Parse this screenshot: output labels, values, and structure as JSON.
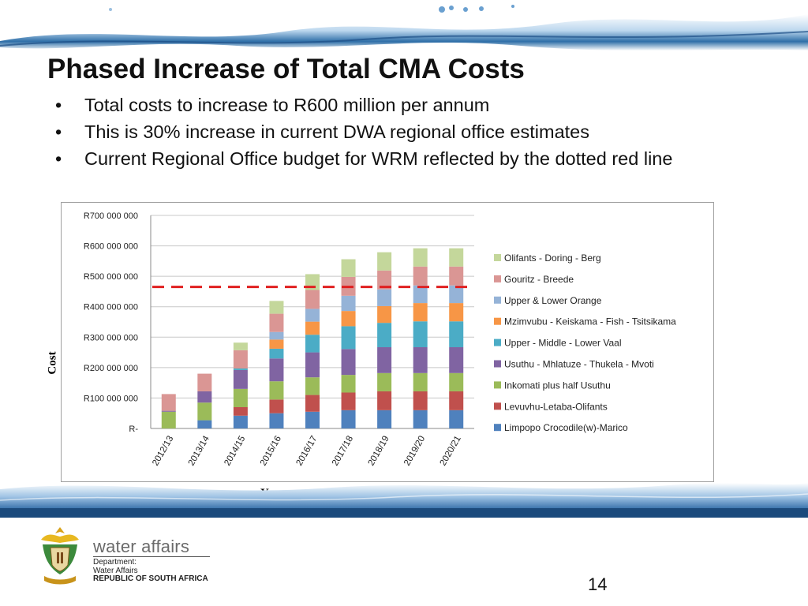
{
  "slide": {
    "title": "Phased Increase of Total CMA Costs",
    "bullets": [
      "Total costs to increase to R600 million per annum",
      "This is 30% increase in current DWA regional office estimates",
      "Current Regional Office budget for WRM reflected by the dotted red line"
    ],
    "bullet_marker": "•",
    "page_number": "14"
  },
  "footer": {
    "brand": "water affairs",
    "dept_line1": "Department:",
    "dept_line2": "Water Affairs",
    "dept_line3": "REPUBLIC OF SOUTH AFRICA",
    "emblem_icon": "coat-of-arms-icon"
  },
  "chart_data": {
    "type": "bar",
    "stacked": true,
    "xlabel": "Years",
    "ylabel": "Cost",
    "ylim": [
      0,
      700000000
    ],
    "yticks": [
      0,
      100000000,
      200000000,
      300000000,
      400000000,
      500000000,
      600000000,
      700000000
    ],
    "ytick_labels": [
      "R-",
      "R100 000 000",
      "R200 000 000",
      "R300 000 000",
      "R400 000 000",
      "R500 000 000",
      "R600 000 000",
      "R700 000 000"
    ],
    "grid": "horizontal",
    "legend_position": "right",
    "categories": [
      "2012/13",
      "2013/14",
      "2014/15",
      "2015/16",
      "2016/17",
      "2017/18",
      "2018/19",
      "2019/20",
      "2020/21"
    ],
    "series": [
      {
        "name": "Limpopo Crocodile(w)-Marico",
        "color": "#4F81BD",
        "values": [
          0,
          27000000,
          42000000,
          50000000,
          55000000,
          60000000,
          60000000,
          60000000,
          60000000
        ]
      },
      {
        "name": "Levuvhu-Letaba-Olifants",
        "color": "#C0504D",
        "values": [
          0,
          0,
          28000000,
          45000000,
          55000000,
          58000000,
          62000000,
          62000000,
          62000000
        ]
      },
      {
        "name": "Inkomati plus half Usuthu",
        "color": "#9BBB59",
        "values": [
          55000000,
          58000000,
          60000000,
          60000000,
          58000000,
          58000000,
          60000000,
          60000000,
          60000000
        ]
      },
      {
        "name": "Usuthu - Mhlatuze - Thukela - Mvoti",
        "color": "#8064A2",
        "values": [
          3000000,
          37000000,
          62000000,
          75000000,
          82000000,
          85000000,
          85000000,
          85000000,
          85000000
        ]
      },
      {
        "name": "Upper - Middle - Lower Vaal",
        "color": "#4BACC6",
        "values": [
          0,
          0,
          5000000,
          32000000,
          58000000,
          75000000,
          80000000,
          85000000,
          85000000
        ]
      },
      {
        "name": "Mzimvubu - Keiskama - Fish - Tsitsikama",
        "color": "#F79646",
        "values": [
          0,
          0,
          0,
          30000000,
          43000000,
          50000000,
          55000000,
          60000000,
          60000000
        ]
      },
      {
        "name": " Upper & Lower Orange",
        "color": "#95B3D7",
        "values": [
          0,
          0,
          0,
          25000000,
          42000000,
          50000000,
          55000000,
          58000000,
          58000000
        ]
      },
      {
        "name": "Gouritz - Breede",
        "color": "#DA9694",
        "values": [
          55000000,
          58000000,
          60000000,
          60000000,
          62000000,
          62000000,
          62000000,
          62000000,
          62000000
        ]
      },
      {
        "name": "Olifants - Doring - Berg",
        "color": "#C4D79B",
        "values": [
          0,
          0,
          25000000,
          42000000,
          52000000,
          58000000,
          60000000,
          60000000,
          60000000
        ]
      }
    ],
    "reference_line": {
      "value": 465000000,
      "style": "dashed",
      "color": "#E02020"
    }
  }
}
